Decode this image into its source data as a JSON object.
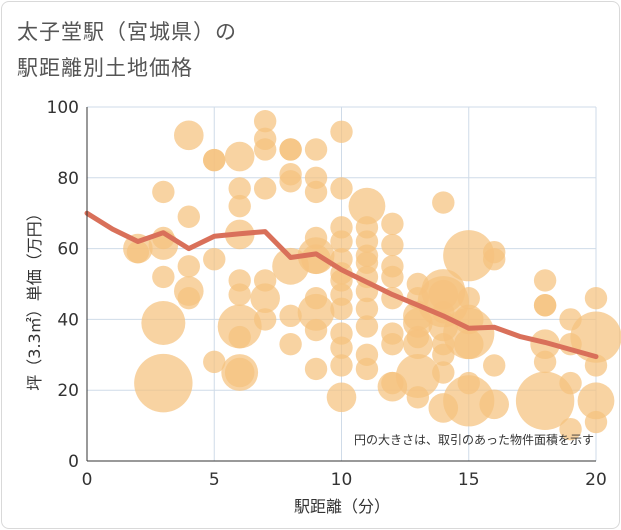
{
  "title_line1": "太子堂駅（宮城県）の",
  "title_line2": "駅距離別土地価格",
  "chart_data": {
    "type": "scatter",
    "xlabel": "駅距離（分）",
    "ylabel": "坪（3.3㎡）単価（万円）",
    "xlim": [
      0,
      20
    ],
    "ylim": [
      0,
      100
    ],
    "xticks": [
      "0",
      "5",
      "10",
      "15",
      "20"
    ],
    "yticks": [
      "0",
      "20",
      "40",
      "60",
      "80",
      "100"
    ],
    "grid": true,
    "annotation": "円の大きさは、取引のあった物件面積を示す",
    "bubble_color": "#f5c27e",
    "line_color": "#d9705a",
    "bubbles": [
      {
        "x": 2,
        "y": 59,
        "s": 2
      },
      {
        "x": 2,
        "y": 60,
        "s": 3
      },
      {
        "x": 3,
        "y": 76,
        "s": 2
      },
      {
        "x": 3,
        "y": 63,
        "s": 2
      },
      {
        "x": 3,
        "y": 61,
        "s": 3
      },
      {
        "x": 3,
        "y": 52,
        "s": 2
      },
      {
        "x": 3,
        "y": 39,
        "s": 5
      },
      {
        "x": 3,
        "y": 22,
        "s": 7
      },
      {
        "x": 4,
        "y": 92,
        "s": 3
      },
      {
        "x": 4,
        "y": 69,
        "s": 2
      },
      {
        "x": 4,
        "y": 55,
        "s": 2
      },
      {
        "x": 4,
        "y": 48,
        "s": 3
      },
      {
        "x": 4,
        "y": 46,
        "s": 2
      },
      {
        "x": 5,
        "y": 85,
        "s": 2
      },
      {
        "x": 5,
        "y": 85,
        "s": 2
      },
      {
        "x": 5,
        "y": 57,
        "s": 2
      },
      {
        "x": 5,
        "y": 28,
        "s": 2
      },
      {
        "x": 6,
        "y": 86,
        "s": 3
      },
      {
        "x": 6,
        "y": 77,
        "s": 2
      },
      {
        "x": 6,
        "y": 72,
        "s": 2
      },
      {
        "x": 6,
        "y": 64,
        "s": 3
      },
      {
        "x": 6,
        "y": 51,
        "s": 2
      },
      {
        "x": 6,
        "y": 47,
        "s": 2
      },
      {
        "x": 6,
        "y": 38,
        "s": 5
      },
      {
        "x": 6,
        "y": 35,
        "s": 2
      },
      {
        "x": 6,
        "y": 25,
        "s": 4
      },
      {
        "x": 6,
        "y": 25,
        "s": 3
      },
      {
        "x": 7,
        "y": 96,
        "s": 2
      },
      {
        "x": 7,
        "y": 91,
        "s": 2
      },
      {
        "x": 7,
        "y": 88,
        "s": 2
      },
      {
        "x": 7,
        "y": 77,
        "s": 2
      },
      {
        "x": 7,
        "y": 51,
        "s": 2
      },
      {
        "x": 7,
        "y": 46,
        "s": 3
      },
      {
        "x": 7,
        "y": 40,
        "s": 2
      },
      {
        "x": 8,
        "y": 88,
        "s": 2
      },
      {
        "x": 8,
        "y": 88,
        "s": 2
      },
      {
        "x": 8,
        "y": 81,
        "s": 2
      },
      {
        "x": 8,
        "y": 79,
        "s": 2
      },
      {
        "x": 8,
        "y": 55,
        "s": 4
      },
      {
        "x": 8,
        "y": 41,
        "s": 2
      },
      {
        "x": 8,
        "y": 33,
        "s": 2
      },
      {
        "x": 9,
        "y": 88,
        "s": 2
      },
      {
        "x": 9,
        "y": 80,
        "s": 2
      },
      {
        "x": 9,
        "y": 76,
        "s": 2
      },
      {
        "x": 9,
        "y": 63,
        "s": 2
      },
      {
        "x": 9,
        "y": 58,
        "s": 4
      },
      {
        "x": 9,
        "y": 57,
        "s": 3
      },
      {
        "x": 9,
        "y": 46,
        "s": 2
      },
      {
        "x": 9,
        "y": 42,
        "s": 4
      },
      {
        "x": 9,
        "y": 37,
        "s": 2
      },
      {
        "x": 9,
        "y": 26,
        "s": 2
      },
      {
        "x": 10,
        "y": 93,
        "s": 2
      },
      {
        "x": 10,
        "y": 77,
        "s": 2
      },
      {
        "x": 10,
        "y": 66,
        "s": 2
      },
      {
        "x": 10,
        "y": 62,
        "s": 2
      },
      {
        "x": 10,
        "y": 57,
        "s": 2
      },
      {
        "x": 10,
        "y": 53,
        "s": 2
      },
      {
        "x": 10,
        "y": 51,
        "s": 2
      },
      {
        "x": 10,
        "y": 47,
        "s": 2
      },
      {
        "x": 10,
        "y": 43,
        "s": 2
      },
      {
        "x": 10,
        "y": 36,
        "s": 2
      },
      {
        "x": 10,
        "y": 32,
        "s": 2
      },
      {
        "x": 10,
        "y": 27,
        "s": 2
      },
      {
        "x": 10,
        "y": 18,
        "s": 3
      },
      {
        "x": 11,
        "y": 72,
        "s": 4
      },
      {
        "x": 11,
        "y": 66,
        "s": 2
      },
      {
        "x": 11,
        "y": 62,
        "s": 2
      },
      {
        "x": 11,
        "y": 58,
        "s": 2
      },
      {
        "x": 11,
        "y": 56,
        "s": 2
      },
      {
        "x": 11,
        "y": 52,
        "s": 2
      },
      {
        "x": 11,
        "y": 48,
        "s": 2
      },
      {
        "x": 11,
        "y": 43,
        "s": 2
      },
      {
        "x": 11,
        "y": 38,
        "s": 2
      },
      {
        "x": 11,
        "y": 30,
        "s": 2
      },
      {
        "x": 11,
        "y": 26,
        "s": 2
      },
      {
        "x": 12,
        "y": 67,
        "s": 2
      },
      {
        "x": 12,
        "y": 61,
        "s": 2
      },
      {
        "x": 12,
        "y": 55,
        "s": 2
      },
      {
        "x": 12,
        "y": 52,
        "s": 2
      },
      {
        "x": 12,
        "y": 46,
        "s": 2
      },
      {
        "x": 12,
        "y": 36,
        "s": 2
      },
      {
        "x": 12,
        "y": 33,
        "s": 2
      },
      {
        "x": 12,
        "y": 22,
        "s": 2
      },
      {
        "x": 12,
        "y": 21,
        "s": 3
      },
      {
        "x": 13,
        "y": 50,
        "s": 2
      },
      {
        "x": 13,
        "y": 46,
        "s": 2
      },
      {
        "x": 13,
        "y": 41,
        "s": 3
      },
      {
        "x": 13,
        "y": 39,
        "s": 3
      },
      {
        "x": 13,
        "y": 35,
        "s": 2
      },
      {
        "x": 13,
        "y": 33,
        "s": 3
      },
      {
        "x": 13,
        "y": 24,
        "s": 5
      },
      {
        "x": 13,
        "y": 18,
        "s": 2
      },
      {
        "x": 14,
        "y": 73,
        "s": 2
      },
      {
        "x": 14,
        "y": 48,
        "s": 5
      },
      {
        "x": 14,
        "y": 47,
        "s": 3
      },
      {
        "x": 14,
        "y": 45,
        "s": 6
      },
      {
        "x": 14,
        "y": 42,
        "s": 2
      },
      {
        "x": 14,
        "y": 38,
        "s": 3
      },
      {
        "x": 14,
        "y": 33,
        "s": 2
      },
      {
        "x": 14,
        "y": 30,
        "s": 2
      },
      {
        "x": 14,
        "y": 25,
        "s": 2
      },
      {
        "x": 14,
        "y": 15,
        "s": 3
      },
      {
        "x": 15,
        "y": 58,
        "s": 6
      },
      {
        "x": 15,
        "y": 46,
        "s": 2
      },
      {
        "x": 15,
        "y": 40,
        "s": 3
      },
      {
        "x": 15,
        "y": 36,
        "s": 6
      },
      {
        "x": 15,
        "y": 33,
        "s": 3
      },
      {
        "x": 15,
        "y": 22,
        "s": 2
      },
      {
        "x": 15,
        "y": 17,
        "s": 6
      },
      {
        "x": 16,
        "y": 59,
        "s": 2
      },
      {
        "x": 16,
        "y": 57,
        "s": 2
      },
      {
        "x": 16,
        "y": 27,
        "s": 2
      },
      {
        "x": 16,
        "y": 16,
        "s": 3
      },
      {
        "x": 18,
        "y": 51,
        "s": 2
      },
      {
        "x": 18,
        "y": 44,
        "s": 2
      },
      {
        "x": 18,
        "y": 44,
        "s": 2
      },
      {
        "x": 18,
        "y": 33,
        "s": 3
      },
      {
        "x": 18,
        "y": 28,
        "s": 2
      },
      {
        "x": 18,
        "y": 17,
        "s": 7
      },
      {
        "x": 19,
        "y": 40,
        "s": 2
      },
      {
        "x": 19,
        "y": 33,
        "s": 2
      },
      {
        "x": 19,
        "y": 22,
        "s": 2
      },
      {
        "x": 19,
        "y": 9,
        "s": 2
      },
      {
        "x": 20,
        "y": 46,
        "s": 2
      },
      {
        "x": 20,
        "y": 35,
        "s": 6
      },
      {
        "x": 20,
        "y": 27,
        "s": 2
      },
      {
        "x": 20,
        "y": 17,
        "s": 4
      },
      {
        "x": 20,
        "y": 11,
        "s": 2
      }
    ],
    "series": [
      {
        "x": [
          0,
          1,
          2,
          3,
          4,
          5,
          6,
          7,
          8,
          9,
          10,
          11,
          12,
          13,
          14,
          15,
          16,
          17,
          18,
          19,
          20
        ],
        "values": [
          70,
          65.5,
          62,
          64.5,
          60,
          63.5,
          64.2,
          64.8,
          57.5,
          58.5,
          54,
          50.5,
          47,
          44,
          41,
          37.5,
          37.8,
          35.2,
          33.5,
          31.5,
          29.5
        ]
      }
    ]
  }
}
